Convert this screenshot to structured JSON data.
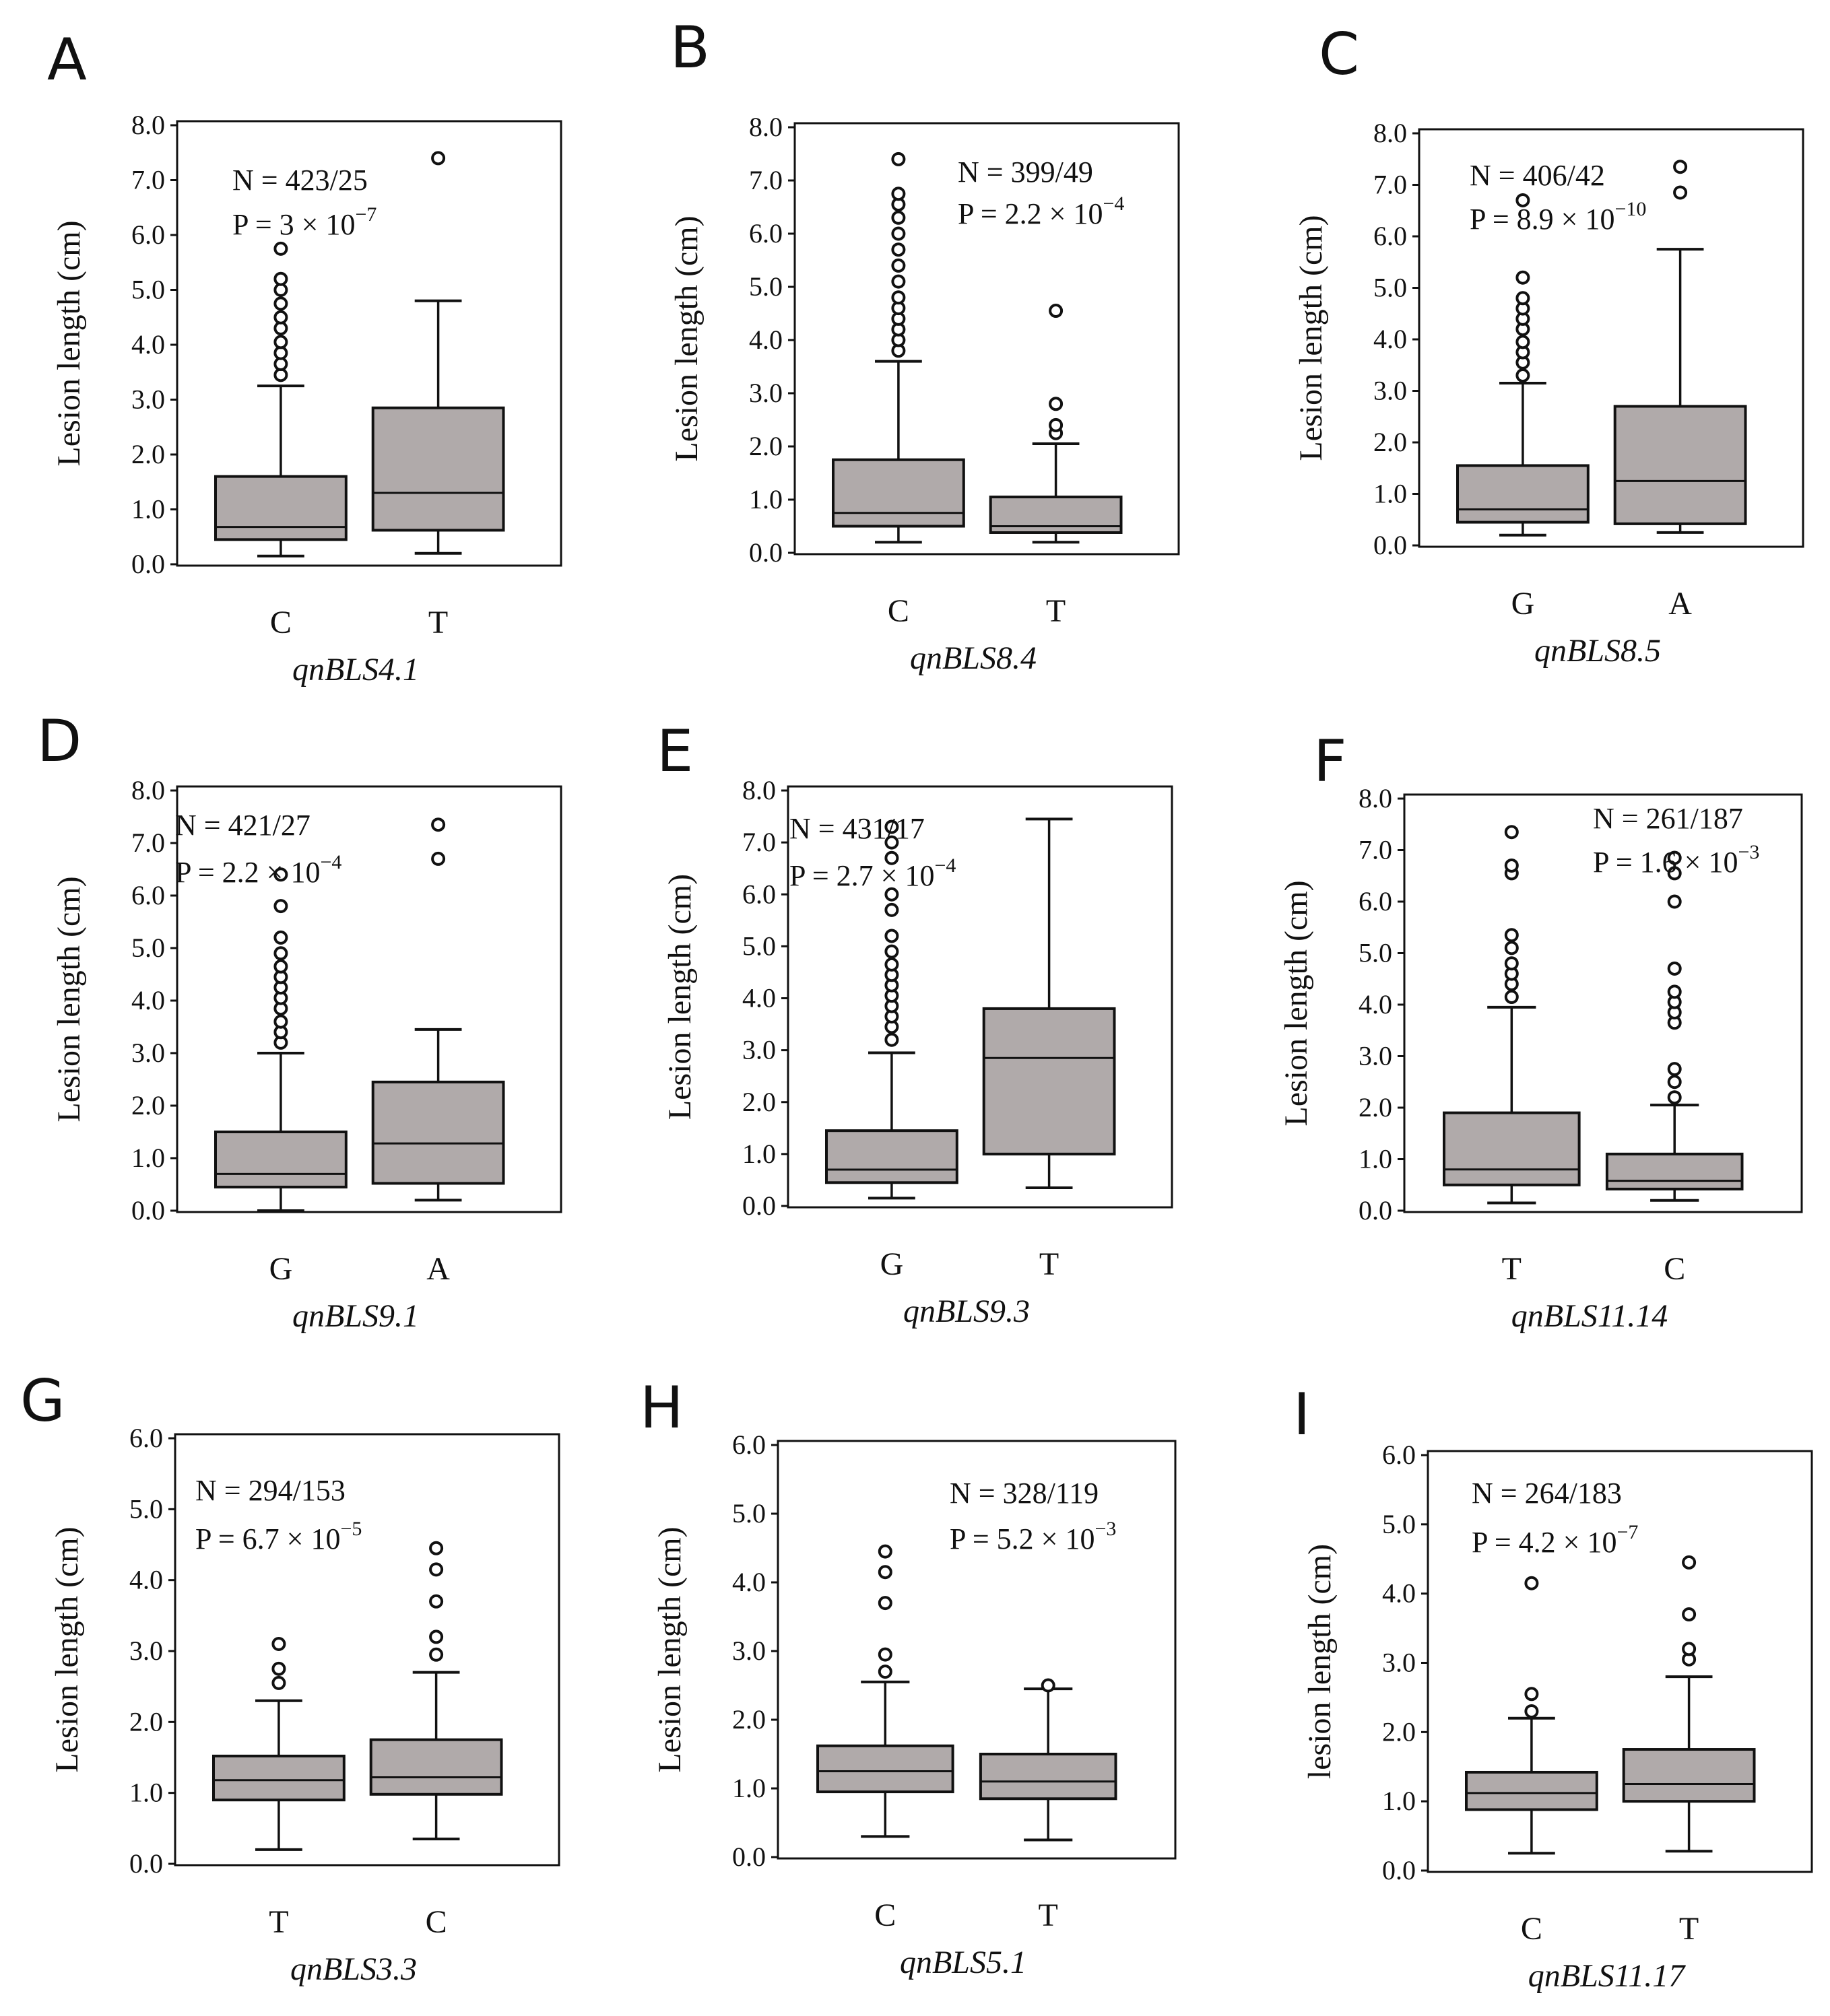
{
  "chart_data": [
    {
      "type": "box",
      "panel": "A",
      "ylabel": "Lesion length (cm)",
      "xlabel": "qnBLS4.1",
      "yticks": [
        "0.0",
        "1.0",
        "2.0",
        "3.0",
        "4.0",
        "5.0",
        "6.0",
        "7.0",
        "8.0"
      ],
      "ylim": [
        0,
        8
      ],
      "annotation": {
        "n_text": "N = 423/25",
        "p_text": "P = 3 × 10",
        "p_exp": "−7"
      },
      "groups": [
        {
          "category": "C",
          "min": 0.15,
          "q1": 0.45,
          "median": 0.68,
          "q3": 1.6,
          "max": 3.25,
          "outliers": [
            3.45,
            3.65,
            3.85,
            4.05,
            4.3,
            4.5,
            4.75,
            5.0,
            5.2,
            5.75
          ]
        },
        {
          "category": "T",
          "min": 0.2,
          "q1": 0.62,
          "median": 1.3,
          "q3": 2.85,
          "max": 4.8,
          "outliers": [
            7.4
          ]
        }
      ]
    },
    {
      "type": "box",
      "panel": "B",
      "ylabel": "Lesion length (cm)",
      "xlabel": "qnBLS8.4",
      "yticks": [
        "0.0",
        "1.0",
        "2.0",
        "3.0",
        "4.0",
        "5.0",
        "6.0",
        "7.0",
        "8.0"
      ],
      "ylim": [
        0,
        8
      ],
      "annotation": {
        "n_text": "N = 399/49",
        "p_text": "P = 2.2 × 10",
        "p_exp": "−4"
      },
      "groups": [
        {
          "category": "C",
          "min": 0.2,
          "q1": 0.5,
          "median": 0.75,
          "q3": 1.75,
          "max": 3.6,
          "outliers": [
            3.8,
            4.0,
            4.2,
            4.4,
            4.6,
            4.8,
            5.1,
            5.4,
            5.7,
            6.0,
            6.3,
            6.55,
            6.75,
            7.4
          ]
        },
        {
          "category": "T",
          "min": 0.2,
          "q1": 0.38,
          "median": 0.5,
          "q3": 1.05,
          "max": 2.05,
          "outliers": [
            2.25,
            2.4,
            2.8,
            4.55
          ]
        }
      ]
    },
    {
      "type": "box",
      "panel": "C",
      "ylabel": "Lesion length (cm)",
      "xlabel": "qnBLS8.5",
      "yticks": [
        "0.0",
        "1.0",
        "2.0",
        "3.0",
        "4.0",
        "5.0",
        "6.0",
        "7.0",
        "8.0"
      ],
      "ylim": [
        0,
        8
      ],
      "annotation": {
        "n_text": "N = 406/42",
        "p_text": "P = 8.9 × 10",
        "p_exp": "−10"
      },
      "groups": [
        {
          "category": "G",
          "min": 0.2,
          "q1": 0.45,
          "median": 0.7,
          "q3": 1.55,
          "max": 3.15,
          "outliers": [
            3.3,
            3.55,
            3.75,
            3.95,
            4.2,
            4.4,
            4.6,
            4.8,
            5.2,
            6.7
          ]
        },
        {
          "category": "A",
          "min": 0.25,
          "q1": 0.42,
          "median": 1.25,
          "q3": 2.7,
          "max": 5.75,
          "outliers": [
            6.85,
            7.35
          ]
        }
      ]
    },
    {
      "type": "box",
      "panel": "D",
      "ylabel": "Lesion length (cm)",
      "xlabel": "qnBLS9.1",
      "yticks": [
        "0.0",
        "1.0",
        "2.0",
        "3.0",
        "4.0",
        "5.0",
        "6.0",
        "7.0",
        "8.0"
      ],
      "ylim": [
        0,
        8
      ],
      "annotation": {
        "n_text": "N = 421/27",
        "p_text": "P = 2.2 × 10",
        "p_exp": "−4"
      },
      "groups": [
        {
          "category": "G",
          "min": 0.0,
          "q1": 0.45,
          "median": 0.7,
          "q3": 1.5,
          "max": 3.0,
          "outliers": [
            3.2,
            3.4,
            3.6,
            3.85,
            4.05,
            4.25,
            4.45,
            4.65,
            4.9,
            5.2,
            5.8,
            6.4
          ]
        },
        {
          "category": "A",
          "min": 0.2,
          "q1": 0.52,
          "median": 1.28,
          "q3": 2.45,
          "max": 3.45,
          "outliers": [
            6.7,
            7.35
          ]
        }
      ]
    },
    {
      "type": "box",
      "panel": "E",
      "ylabel": "Lesion length (cm)",
      "xlabel": "qnBLS9.3",
      "yticks": [
        "0.0",
        "1.0",
        "2.0",
        "3.0",
        "4.0",
        "5.0",
        "6.0",
        "7.0",
        "8.0"
      ],
      "ylim": [
        0,
        8
      ],
      "annotation": {
        "n_text": "N = 431/17",
        "p_text": "P = 2.7 × 10",
        "p_exp": "−4"
      },
      "groups": [
        {
          "category": "G",
          "min": 0.15,
          "q1": 0.45,
          "median": 0.7,
          "q3": 1.45,
          "max": 2.95,
          "outliers": [
            3.2,
            3.45,
            3.65,
            3.85,
            4.05,
            4.25,
            4.45,
            4.65,
            4.9,
            5.2,
            5.7,
            6.0,
            6.7,
            7.0,
            7.3
          ]
        },
        {
          "category": "T",
          "min": 0.35,
          "q1": 1.0,
          "median": 2.85,
          "q3": 3.8,
          "max": 7.45,
          "outliers": []
        }
      ]
    },
    {
      "type": "box",
      "panel": "F",
      "ylabel": "Lesion length (cm)",
      "xlabel": "qnBLS11.14",
      "yticks": [
        "0.0",
        "1.0",
        "2.0",
        "3.0",
        "4.0",
        "5.0",
        "6.0",
        "7.0",
        "8.0"
      ],
      "ylim": [
        0,
        8
      ],
      "annotation": {
        "n_text": "N = 261/187",
        "p_text": "P = 1.6 × 10",
        "p_exp": "−3"
      },
      "groups": [
        {
          "category": "T",
          "min": 0.15,
          "q1": 0.5,
          "median": 0.8,
          "q3": 1.9,
          "max": 3.95,
          "outliers": [
            4.15,
            4.4,
            4.6,
            4.8,
            5.1,
            5.35,
            6.55,
            6.7,
            7.35
          ]
        },
        {
          "category": "C",
          "min": 0.2,
          "q1": 0.42,
          "median": 0.58,
          "q3": 1.1,
          "max": 2.05,
          "outliers": [
            2.2,
            2.5,
            2.75,
            3.65,
            3.85,
            4.05,
            4.25,
            4.7,
            6.0,
            6.55,
            6.85
          ]
        }
      ]
    },
    {
      "type": "box",
      "panel": "G",
      "ylabel": "Lesion length (cm)",
      "xlabel": "qnBLS3.3",
      "yticks": [
        "0.0",
        "1.0",
        "2.0",
        "3.0",
        "4.0",
        "5.0",
        "6.0"
      ],
      "ylim": [
        0,
        6
      ],
      "annotation": {
        "n_text": "N = 294/153",
        "p_text": "P = 6.7 × 10",
        "p_exp": "−5"
      },
      "groups": [
        {
          "category": "T",
          "min": 0.2,
          "q1": 0.9,
          "median": 1.18,
          "q3": 1.52,
          "max": 2.3,
          "outliers": [
            2.55,
            2.75,
            3.1
          ]
        },
        {
          "category": "C",
          "min": 0.35,
          "q1": 0.98,
          "median": 1.22,
          "q3": 1.75,
          "max": 2.7,
          "outliers": [
            2.95,
            3.2,
            3.7,
            4.15,
            4.45
          ]
        }
      ]
    },
    {
      "type": "box",
      "panel": "H",
      "ylabel": "Lesion length (cm)",
      "xlabel": "qnBLS5.1",
      "yticks": [
        "0.0",
        "1.0",
        "2.0",
        "3.0",
        "4.0",
        "5.0",
        "6.0"
      ],
      "ylim": [
        0,
        6
      ],
      "annotation": {
        "n_text": "N = 328/119",
        "p_text": "P = 5.2 × 10",
        "p_exp": "−3"
      },
      "groups": [
        {
          "category": "C",
          "min": 0.3,
          "q1": 0.95,
          "median": 1.25,
          "q3": 1.62,
          "max": 2.55,
          "outliers": [
            2.7,
            2.95,
            3.7,
            4.15,
            4.45
          ]
        },
        {
          "category": "T",
          "min": 0.25,
          "q1": 0.85,
          "median": 1.1,
          "q3": 1.5,
          "max": 2.45,
          "outliers": [
            2.5
          ]
        }
      ]
    },
    {
      "type": "box",
      "panel": "I",
      "ylabel": "lesion length (cm)",
      "xlabel": "qnBLS11.17",
      "yticks": [
        "0.0",
        "1.0",
        "2.0",
        "3.0",
        "4.0",
        "5.0",
        "6.0"
      ],
      "ylim": [
        0,
        6
      ],
      "annotation": {
        "n_text": "N = 264/183",
        "p_text": "P = 4.2 × 10",
        "p_exp": "−7"
      },
      "groups": [
        {
          "category": "C",
          "min": 0.25,
          "q1": 0.88,
          "median": 1.12,
          "q3": 1.42,
          "max": 2.2,
          "outliers": [
            2.3,
            2.55,
            4.15
          ]
        },
        {
          "category": "T",
          "min": 0.28,
          "q1": 1.0,
          "median": 1.25,
          "q3": 1.75,
          "max": 2.8,
          "outliers": [
            3.05,
            3.2,
            3.7,
            4.45
          ]
        }
      ]
    }
  ]
}
